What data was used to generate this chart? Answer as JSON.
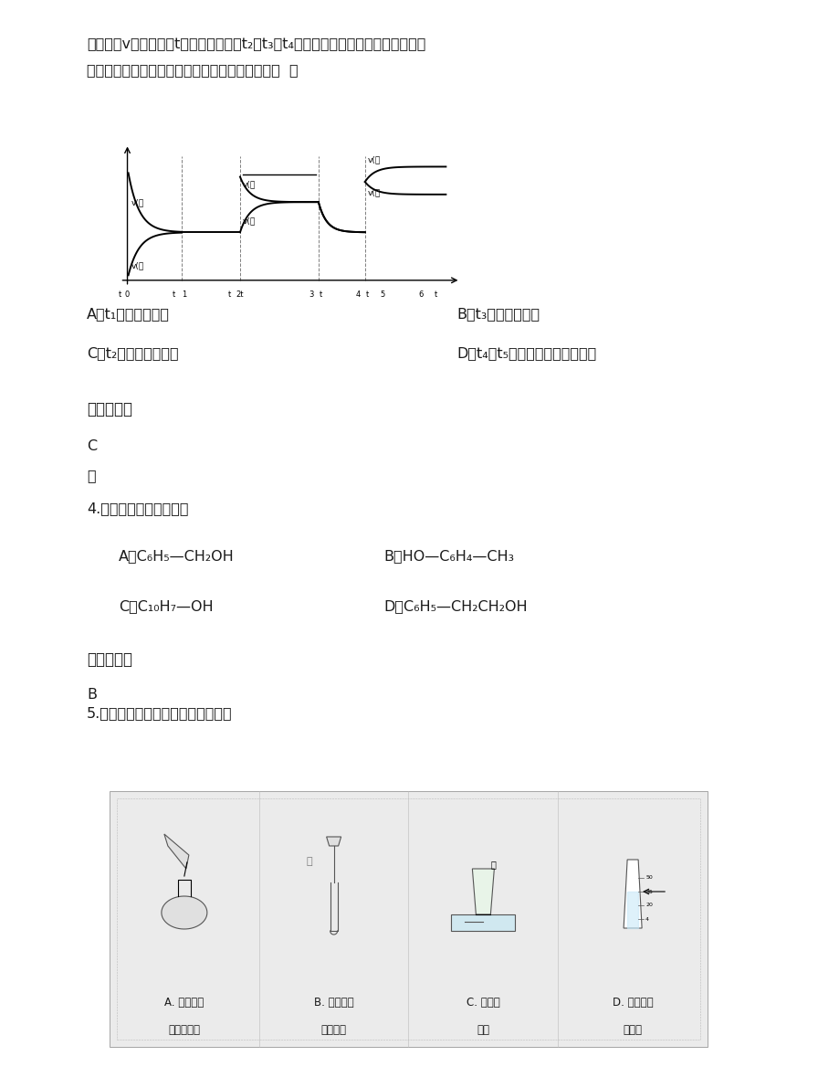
{
  "bg_color": "#ffffff",
  "page_width": 9.2,
  "page_height": 11.91,
  "font_color": "#1a1a1a",
  "top_text1": "的速率（v）随时间（t）变化的关系，t₂、t₃、t₄时刻外界条件有所改变，但都没有",
  "top_text2": "改变各物质的初始加入量。下列说法中正确的是（  ）",
  "opt_A": "A．t₁时增大了压强",
  "opt_B": "B．t₃时降低了温度",
  "opt_C": "C．t₂时加入了催化剂",
  "opt_D": "D．t₄～t₅时间内转化率一定最低",
  "ans_label1": "参考答案：",
  "ans1": "C",
  "ans1_note": "略",
  "q4": "4.下列有机物属于酚的是",
  "q4_optA": "A．C₆H₅—CH₂OH",
  "q4_optB": "B．HO—C₆H₄—CH₃",
  "q4_optC": "C．C₁₀H₇—OH",
  "q4_optD": "D．C₆H₅—CH₂CH₂OH",
  "ans_label2": "参考答案：",
  "ans2": "B",
  "q5": "5.下列操作方法或实验装置正确的是",
  "app_A1": "A. 向容量瓶",
  "app_A2": "中转移液体",
  "app_B1": "B. 向试管内",
  "app_B2": "滴加液体",
  "app_C1": "C. 氨气的",
  "app_C2": "收集",
  "app_D1": "D. 量取液体",
  "app_D2": "时读数",
  "water": "水"
}
